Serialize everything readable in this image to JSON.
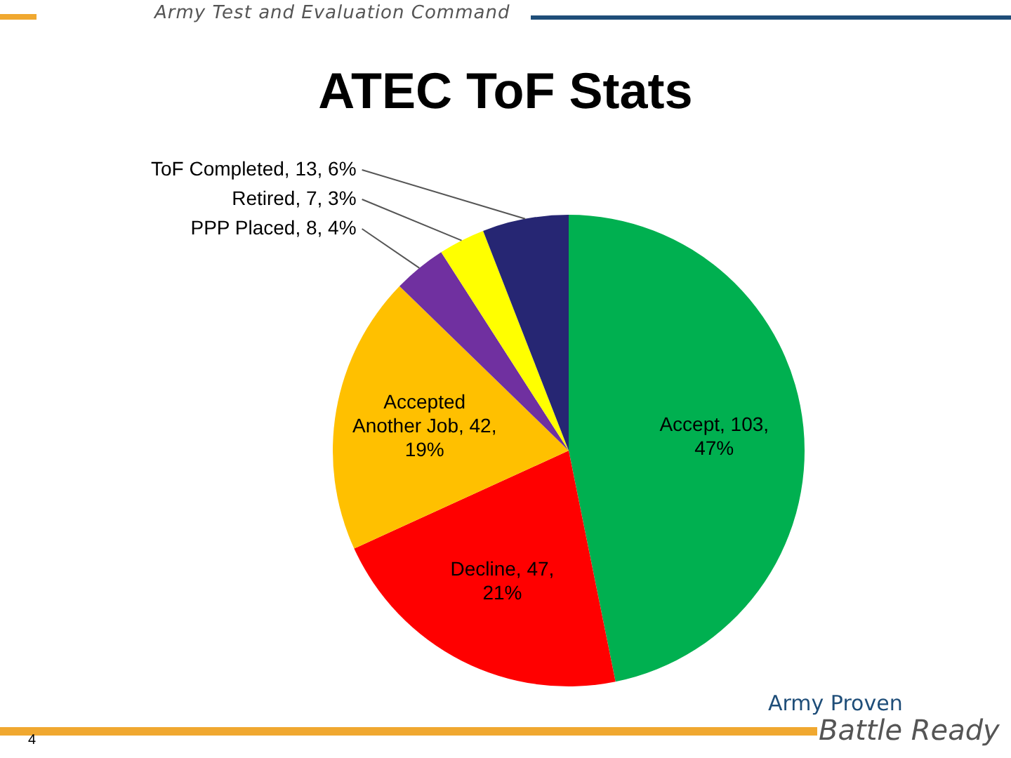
{
  "chart_data": {
    "type": "pie",
    "title": "ATEC ToF Stats",
    "categories": [
      "Accept",
      "Decline",
      "Accepted Another Job",
      "PPP Placed",
      "Retired",
      "ToF Completed"
    ],
    "values": [
      103,
      47,
      42,
      8,
      7,
      13
    ],
    "colors": [
      "#00b050",
      "#ff0000",
      "#ffc000",
      "#7030a0",
      "#ffff00",
      "#262673"
    ],
    "value_labels": [
      "103, 47%",
      "47, 21%",
      "42, 19%",
      "8, 4%",
      "7, 3%",
      "13, 6%"
    ],
    "annotations": [
      "Army Test and Evaluation Command",
      "Army Proven",
      "Battle Ready",
      "4"
    ]
  }
}
